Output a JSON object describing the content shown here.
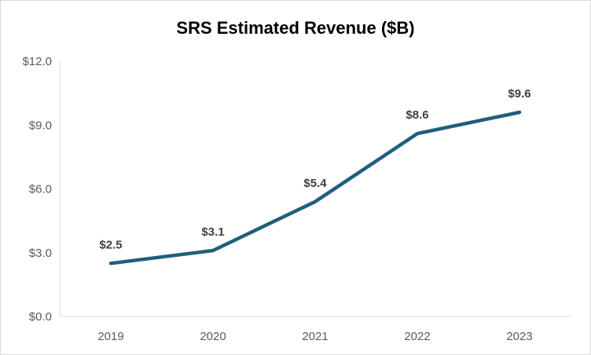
{
  "chart_data": {
    "type": "line",
    "title": "SRS Estimated Revenue ($B)",
    "xlabel": "",
    "ylabel": "",
    "categories": [
      "2019",
      "2020",
      "2021",
      "2022",
      "2023"
    ],
    "series": [
      {
        "values": [
          2.5,
          3.1,
          5.4,
          8.6,
          9.6
        ],
        "labels": [
          "$2.5",
          "$3.1",
          "$5.4",
          "$8.6",
          "$9.6"
        ],
        "color": "#1f5f7d"
      }
    ],
    "ylim": [
      0,
      12
    ],
    "yticks": [
      0,
      3,
      6,
      9,
      12
    ],
    "ytick_labels": [
      "$0.0",
      "$3.0",
      "$6.0",
      "$9.0",
      "$12.0"
    ],
    "grid": false,
    "legend": "none",
    "axis_color": "#d9d9d9",
    "text_color": "#595959"
  }
}
